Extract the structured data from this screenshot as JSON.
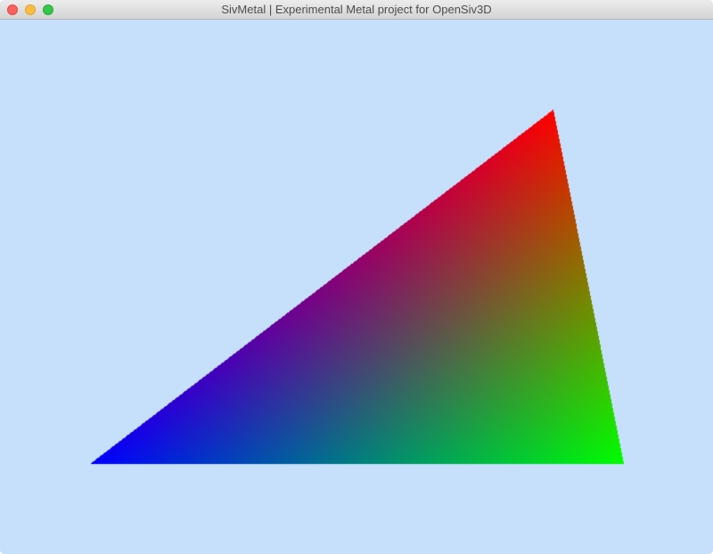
{
  "window": {
    "title": "SivMetal | Experimental Metal project for OpenSiv3D",
    "background_color": "#c6e0fc"
  },
  "controls": {
    "close": "close-icon",
    "minimize": "minimize-icon",
    "zoom": "zoom-icon"
  },
  "scene": {
    "shape": "triangle",
    "vertex_colors": {
      "top_right": "#ff0000",
      "bottom_left": "#0000ff",
      "bottom_right": "#00ff00"
    }
  }
}
